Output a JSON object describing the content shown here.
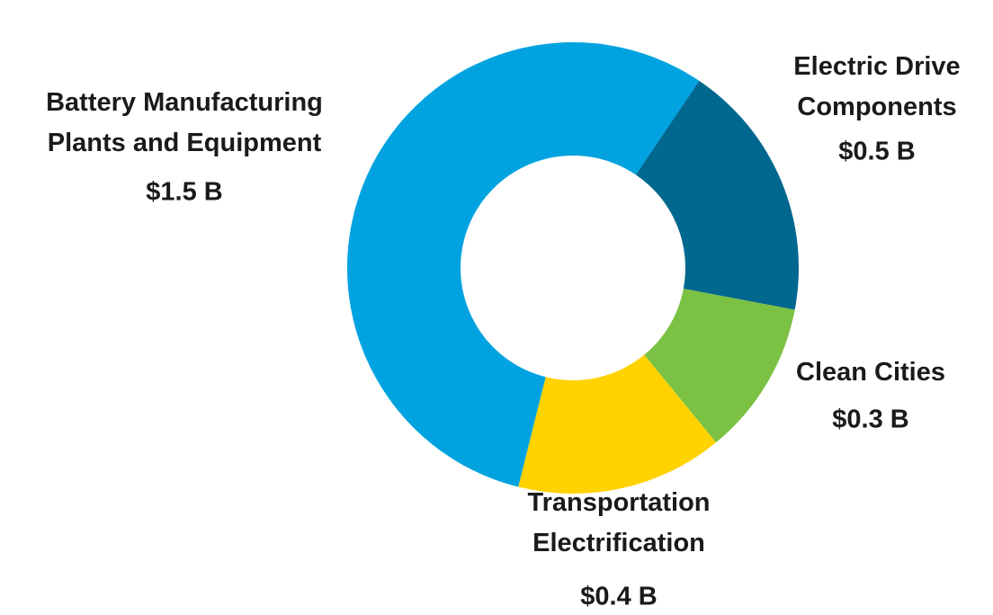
{
  "chart_data": {
    "type": "donut",
    "categories": [
      "Battery Manufacturing\nPlants and Equipment",
      "Electric Drive\nComponents",
      "Clean Cities",
      "Transportation\nElectrification"
    ],
    "values": [
      1.5,
      0.5,
      0.3,
      0.4
    ],
    "value_labels": [
      "$1.5 B",
      "$0.5 B",
      "$0.3 B",
      "$0.4 B"
    ],
    "colors": [
      "#00a3e0",
      "#00678f",
      "#7bc143",
      "#ffd200"
    ]
  }
}
